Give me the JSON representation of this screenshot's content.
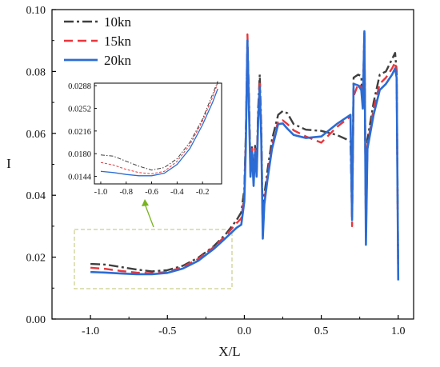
{
  "chart_data": [
    {
      "type": "line",
      "xlabel": "X/L",
      "ylabel": "I",
      "xlim": [
        -1.25,
        1.1
      ],
      "ylim": [
        0.0,
        0.1
      ],
      "x_ticks": [
        "-1.0",
        "-0.5",
        "0.0",
        "0.5",
        "1.0"
      ],
      "y_ticks": [
        "0.00",
        "0.02",
        "0.04",
        "0.06",
        "0.08",
        "0.10"
      ],
      "legend_position": "top-left",
      "series": [
        {
          "name": "10kn",
          "color": "#3f3f3f",
          "dash": "dash-dot",
          "points": [
            [
              -1.0,
              0.0178
            ],
            [
              -0.9,
              0.0176
            ],
            [
              -0.8,
              0.0168
            ],
            [
              -0.7,
              0.016
            ],
            [
              -0.6,
              0.0154
            ],
            [
              -0.5,
              0.0158
            ],
            [
              -0.4,
              0.0172
            ],
            [
              -0.3,
              0.0198
            ],
            [
              -0.2,
              0.0235
            ],
            [
              -0.12,
              0.0275
            ],
            [
              -0.05,
              0.032
            ],
            [
              -0.02,
              0.0345
            ],
            [
              0.0,
              0.042
            ],
            [
              0.01,
              0.06
            ],
            [
              0.02,
              0.088
            ],
            [
              0.03,
              0.072
            ],
            [
              0.04,
              0.048
            ],
            [
              0.05,
              0.056
            ],
            [
              0.06,
              0.045
            ],
            [
              0.07,
              0.056
            ],
            [
              0.08,
              0.048
            ],
            [
              0.09,
              0.068
            ],
            [
              0.1,
              0.079
            ],
            [
              0.11,
              0.062
            ],
            [
              0.12,
              0.03
            ],
            [
              0.13,
              0.04
            ],
            [
              0.15,
              0.048
            ],
            [
              0.18,
              0.058
            ],
            [
              0.22,
              0.066
            ],
            [
              0.25,
              0.0672
            ],
            [
              0.28,
              0.0665
            ],
            [
              0.32,
              0.063
            ],
            [
              0.4,
              0.0612
            ],
            [
              0.5,
              0.0608
            ],
            [
              0.6,
              0.0595
            ],
            [
              0.69,
              0.0575
            ],
            [
              0.7,
              0.034
            ],
            [
              0.71,
              0.078
            ],
            [
              0.74,
              0.079
            ],
            [
              0.76,
              0.0785
            ],
            [
              0.77,
              0.07
            ],
            [
              0.78,
              0.093
            ],
            [
              0.79,
              0.03
            ],
            [
              0.8,
              0.058
            ],
            [
              0.84,
              0.07
            ],
            [
              0.88,
              0.079
            ],
            [
              0.92,
              0.08
            ],
            [
              0.96,
              0.084
            ],
            [
              0.98,
              0.086
            ],
            [
              0.99,
              0.08
            ],
            [
              1.0,
              0.014
            ]
          ]
        },
        {
          "name": "15kn",
          "color": "#e8363c",
          "dash": "dash",
          "points": [
            [
              -1.0,
              0.0166
            ],
            [
              -0.9,
              0.0162
            ],
            [
              -0.8,
              0.0155
            ],
            [
              -0.7,
              0.015
            ],
            [
              -0.6,
              0.0148
            ],
            [
              -0.5,
              0.0152
            ],
            [
              -0.4,
              0.0168
            ],
            [
              -0.3,
              0.0194
            ],
            [
              -0.2,
              0.0232
            ],
            [
              -0.12,
              0.027
            ],
            [
              -0.05,
              0.031
            ],
            [
              -0.02,
              0.0325
            ],
            [
              0.0,
              0.04
            ],
            [
              0.01,
              0.058
            ],
            [
              0.02,
              0.092
            ],
            [
              0.03,
              0.07
            ],
            [
              0.04,
              0.047
            ],
            [
              0.05,
              0.055
            ],
            [
              0.06,
              0.044
            ],
            [
              0.07,
              0.055
            ],
            [
              0.08,
              0.047
            ],
            [
              0.09,
              0.066
            ],
            [
              0.1,
              0.077
            ],
            [
              0.11,
              0.06
            ],
            [
              0.12,
              0.027
            ],
            [
              0.13,
              0.038
            ],
            [
              0.15,
              0.046
            ],
            [
              0.18,
              0.056
            ],
            [
              0.22,
              0.064
            ],
            [
              0.25,
              0.0642
            ],
            [
              0.28,
              0.063
            ],
            [
              0.32,
              0.061
            ],
            [
              0.4,
              0.059
            ],
            [
              0.5,
              0.057
            ],
            [
              0.6,
              0.062
            ],
            [
              0.69,
              0.0655
            ],
            [
              0.7,
              0.03
            ],
            [
              0.71,
              0.072
            ],
            [
              0.74,
              0.076
            ],
            [
              0.76,
              0.075
            ],
            [
              0.77,
              0.069
            ],
            [
              0.78,
              0.092
            ],
            [
              0.79,
              0.027
            ],
            [
              0.8,
              0.056
            ],
            [
              0.84,
              0.068
            ],
            [
              0.88,
              0.076
            ],
            [
              0.92,
              0.078
            ],
            [
              0.96,
              0.081
            ],
            [
              0.98,
              0.083
            ],
            [
              0.99,
              0.079
            ],
            [
              1.0,
              0.012
            ]
          ]
        },
        {
          "name": "20kn",
          "color": "#2b6cd4",
          "dash": "solid",
          "points": [
            [
              -1.0,
              0.0152
            ],
            [
              -0.9,
              0.015
            ],
            [
              -0.8,
              0.0147
            ],
            [
              -0.7,
              0.0145
            ],
            [
              -0.6,
              0.0145
            ],
            [
              -0.5,
              0.0149
            ],
            [
              -0.4,
              0.0163
            ],
            [
              -0.3,
              0.0188
            ],
            [
              -0.2,
              0.0226
            ],
            [
              -0.12,
              0.0262
            ],
            [
              -0.05,
              0.0295
            ],
            [
              -0.02,
              0.0305
            ],
            [
              0.0,
              0.038
            ],
            [
              0.01,
              0.056
            ],
            [
              0.02,
              0.09
            ],
            [
              0.03,
              0.068
            ],
            [
              0.04,
              0.046
            ],
            [
              0.05,
              0.054
            ],
            [
              0.06,
              0.043
            ],
            [
              0.07,
              0.054
            ],
            [
              0.08,
              0.046
            ],
            [
              0.09,
              0.064
            ],
            [
              0.1,
              0.075
            ],
            [
              0.11,
              0.058
            ],
            [
              0.12,
              0.026
            ],
            [
              0.13,
              0.037
            ],
            [
              0.15,
              0.045
            ],
            [
              0.18,
              0.055
            ],
            [
              0.22,
              0.063
            ],
            [
              0.25,
              0.0632
            ],
            [
              0.28,
              0.0615
            ],
            [
              0.32,
              0.0595
            ],
            [
              0.4,
              0.0585
            ],
            [
              0.5,
              0.059
            ],
            [
              0.6,
              0.063
            ],
            [
              0.69,
              0.066
            ],
            [
              0.7,
              0.032
            ],
            [
              0.71,
              0.076
            ],
            [
              0.74,
              0.0755
            ],
            [
              0.76,
              0.074
            ],
            [
              0.77,
              0.068
            ],
            [
              0.78,
              0.093
            ],
            [
              0.79,
              0.024
            ],
            [
              0.8,
              0.055
            ],
            [
              0.84,
              0.066
            ],
            [
              0.88,
              0.074
            ],
            [
              0.92,
              0.076
            ],
            [
              0.96,
              0.079
            ],
            [
              0.98,
              0.081
            ],
            [
              0.99,
              0.078
            ],
            [
              1.0,
              0.0125
            ]
          ]
        }
      ]
    },
    {
      "type": "line",
      "inset": true,
      "xlim": [
        -1.05,
        -0.05
      ],
      "ylim": [
        0.0132,
        0.0292
      ],
      "x_ticks": [
        "-1.0",
        "-0.8",
        "-0.6",
        "-0.4",
        "-0.2"
      ],
      "y_ticks": [
        "0.0144",
        "0.0180",
        "0.0216",
        "0.0252",
        "0.0288"
      ],
      "series": [
        {
          "name": "10kn",
          "color": "#3f3f3f",
          "dash": "dash-dot",
          "points": [
            [
              -1.0,
              0.0178
            ],
            [
              -0.9,
              0.0176
            ],
            [
              -0.8,
              0.0168
            ],
            [
              -0.7,
              0.016
            ],
            [
              -0.6,
              0.0154
            ],
            [
              -0.5,
              0.0158
            ],
            [
              -0.4,
              0.0172
            ],
            [
              -0.3,
              0.0198
            ],
            [
              -0.2,
              0.0235
            ],
            [
              -0.12,
              0.0275
            ],
            [
              -0.08,
              0.0295
            ]
          ]
        },
        {
          "name": "15kn",
          "color": "#e8363c",
          "dash": "dash",
          "points": [
            [
              -1.0,
              0.0166
            ],
            [
              -0.9,
              0.0162
            ],
            [
              -0.8,
              0.0155
            ],
            [
              -0.7,
              0.015
            ],
            [
              -0.6,
              0.0148
            ],
            [
              -0.5,
              0.0152
            ],
            [
              -0.4,
              0.0168
            ],
            [
              -0.3,
              0.0194
            ],
            [
              -0.2,
              0.0232
            ],
            [
              -0.12,
              0.027
            ],
            [
              -0.08,
              0.0292
            ]
          ]
        },
        {
          "name": "20kn",
          "color": "#2b6cd4",
          "dash": "solid",
          "points": [
            [
              -1.0,
              0.0152
            ],
            [
              -0.9,
              0.015
            ],
            [
              -0.8,
              0.0147
            ],
            [
              -0.7,
              0.0145
            ],
            [
              -0.6,
              0.0145
            ],
            [
              -0.5,
              0.0149
            ],
            [
              -0.4,
              0.0163
            ],
            [
              -0.3,
              0.0188
            ],
            [
              -0.2,
              0.0226
            ],
            [
              -0.12,
              0.0262
            ],
            [
              -0.08,
              0.0283
            ]
          ]
        }
      ]
    }
  ],
  "colors": {
    "axis": "#000000",
    "zoom_box": "#c9cf8a",
    "arrow": "#79b41e"
  }
}
